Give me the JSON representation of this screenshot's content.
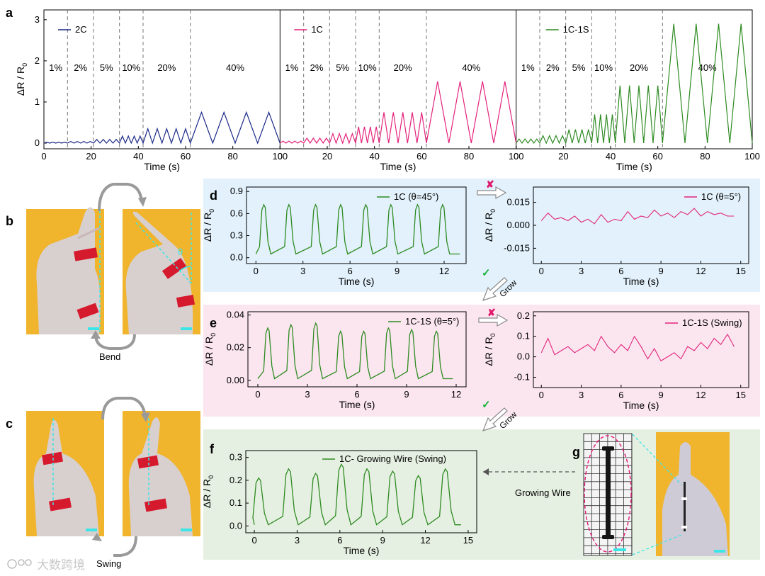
{
  "panel_labels": {
    "a": "a",
    "b": "b",
    "c": "c",
    "d": "d",
    "e": "e",
    "f": "f",
    "g": "g"
  },
  "annotations": {
    "bend": "Bend",
    "swing": "Swing",
    "grow": "Grow",
    "growing_wire": "Growing Wire",
    "theta": "θ",
    "watermark": "大数跨境"
  },
  "colors": {
    "navy": "#1c2a87",
    "pink": "#e3237c",
    "green": "#2e8b22",
    "blue_bg": "#e2f1fb",
    "pink_bg": "#fbe6ef",
    "green_bg": "#e6f0e2",
    "cross": "#e0186a",
    "check": "#19b23b",
    "photo_bg": "#f0b42d"
  },
  "chart_data": [
    {
      "id": "a",
      "type": "line",
      "xlabel": "Time (s)",
      "ylabel": "ΔR / R",
      "ylabel_sub": "0",
      "ylim": [
        0,
        3.1
      ],
      "yticks": [
        0,
        1,
        2,
        3
      ],
      "xticks": [
        0,
        20,
        40,
        60,
        80,
        100
      ],
      "strain_labels": [
        "1%",
        "2%",
        "5%",
        "10%",
        "20%",
        "40%"
      ],
      "strain_boundaries": [
        10,
        21,
        32,
        42,
        62
      ],
      "series": [
        {
          "name": "2C",
          "color": "#1c2a87",
          "amplitudes": [
            0.02,
            0.04,
            0.09,
            0.17,
            0.35,
            0.75
          ]
        },
        {
          "name": "1C",
          "color": "#e3237c",
          "amplitudes": [
            0.05,
            0.12,
            0.23,
            0.4,
            0.75,
            1.5
          ]
        },
        {
          "name": "1C-1S",
          "color": "#2e8b22",
          "amplitudes": [
            0.1,
            0.18,
            0.33,
            0.7,
            1.4,
            2.9
          ]
        }
      ]
    },
    {
      "id": "d1",
      "type": "line",
      "legend": "1C (θ=45°)",
      "xlabel": "Time (s)",
      "ylabel": "ΔR / R",
      "ylabel_sub": "0",
      "xlim": [
        -0.6,
        13.4
      ],
      "ylim": [
        -0.08,
        0.96
      ],
      "xticks": [
        0,
        3,
        6,
        9,
        12
      ],
      "yticks": [
        0.0,
        0.3,
        0.6,
        0.9
      ],
      "ytick_labels": [
        "0.0",
        "0.3",
        "0.6",
        "0.9"
      ],
      "pulse_peaks": [
        0.5,
        2.1,
        3.8,
        5.4,
        7.0,
        8.6,
        10.3,
        11.9
      ],
      "peak": 0.72,
      "base": 0.05,
      "pulse_width": 0.6,
      "end": 13.0
    },
    {
      "id": "d2",
      "type": "line",
      "legend": "1C (θ=5°)",
      "xlabel": "Time (s)",
      "ylabel": "ΔR / R",
      "ylabel_sub": "0",
      "xlim": [
        -0.6,
        15.6
      ],
      "ylim": [
        -0.025,
        0.025
      ],
      "xticks": [
        0,
        3,
        6,
        9,
        12,
        15
      ],
      "yticks": [
        -0.015,
        0.0,
        0.015
      ],
      "ytick_labels": [
        "-0.015",
        "0.000",
        "0.015"
      ],
      "x": [
        0,
        0.5,
        1,
        1.5,
        2,
        2.5,
        3,
        3.5,
        4,
        4.5,
        5,
        5.5,
        6,
        6.5,
        7,
        7.5,
        8,
        8.5,
        9,
        9.5,
        10,
        10.5,
        11,
        11.5,
        12,
        12.5,
        13,
        13.5,
        14,
        14.5
      ],
      "y": [
        0.003,
        0.008,
        0.004,
        0.005,
        0.003,
        0.006,
        0.002,
        0.004,
        0.001,
        0.007,
        0.002,
        0.004,
        0.003,
        0.009,
        0.004,
        0.006,
        0.005,
        0.01,
        0.006,
        0.008,
        0.005,
        0.009,
        0.007,
        0.011,
        0.006,
        0.009,
        0.007,
        0.008,
        0.006,
        0.006
      ]
    },
    {
      "id": "e1",
      "type": "line",
      "legend": "1C-1S (θ=5°)",
      "xlabel": "Time (s)",
      "ylabel": "ΔR / R",
      "ylabel_sub": "0",
      "xlim": [
        -0.6,
        12.6
      ],
      "ylim": [
        -0.004,
        0.042
      ],
      "xticks": [
        0,
        3,
        6,
        9,
        12
      ],
      "yticks": [
        0.0,
        0.02,
        0.04
      ],
      "ytick_labels": [
        "0.00",
        "0.02",
        "0.04"
      ],
      "pulse_peaks": [
        0.6,
        2.0,
        3.5,
        5.0,
        6.4,
        7.9,
        9.3,
        10.8
      ],
      "peaks": [
        0.032,
        0.034,
        0.035,
        0.03,
        0.03,
        0.032,
        0.031,
        0.03
      ],
      "base": 0.001,
      "pulse_width": 0.55,
      "end": 11.8
    },
    {
      "id": "e2",
      "type": "line",
      "legend": "1C-1S (Swing)",
      "xlabel": "Time (s)",
      "ylabel": "ΔR / R",
      "ylabel_sub": "0",
      "xlim": [
        -0.6,
        15.6
      ],
      "ylim": [
        -0.15,
        0.22
      ],
      "xticks": [
        0,
        3,
        6,
        9,
        12,
        15
      ],
      "yticks": [
        -0.1,
        0.0,
        0.1,
        0.2
      ],
      "ytick_labels": [
        "-0.1",
        "0.0",
        "0.1",
        "0.2"
      ],
      "x": [
        0,
        0.5,
        1,
        1.5,
        2,
        2.5,
        3,
        3.5,
        4,
        4.5,
        5,
        5.5,
        6,
        6.5,
        7,
        7.5,
        8,
        8.5,
        9,
        9.5,
        10,
        10.5,
        11,
        11.5,
        12,
        12.5,
        13,
        13.5,
        14,
        14.5
      ],
      "y": [
        0.02,
        0.09,
        0.01,
        0.03,
        0.05,
        0.02,
        0.04,
        0.06,
        0.03,
        0.1,
        0.05,
        0.02,
        0.06,
        0.03,
        0.1,
        0.05,
        -0.01,
        0.04,
        -0.02,
        0.0,
        0.02,
        -0.01,
        0.05,
        0.03,
        0.07,
        0.04,
        0.09,
        0.06,
        0.11,
        0.05
      ]
    },
    {
      "id": "f",
      "type": "line",
      "legend": "1C- Growing Wire (Swing)",
      "xlabel": "Time (s)",
      "ylabel": "ΔR / R",
      "ylabel_sub": "0",
      "xlim": [
        -0.6,
        15.6
      ],
      "ylim": [
        -0.03,
        0.33
      ],
      "xticks": [
        0,
        3,
        6,
        9,
        12,
        15
      ],
      "yticks": [
        0.0,
        0.1,
        0.2,
        0.3
      ],
      "ytick_labels": [
        "0.0",
        "0.1",
        "0.2",
        "0.3"
      ],
      "pulse_peaks": [
        0.3,
        2.4,
        4.3,
        6.1,
        7.9,
        9.7,
        11.5,
        13.4
      ],
      "peaks": [
        0.21,
        0.25,
        0.23,
        0.27,
        0.25,
        0.24,
        0.22,
        0.25
      ],
      "base": 0.005,
      "pulse_width": 0.9,
      "end": 14.5
    }
  ]
}
